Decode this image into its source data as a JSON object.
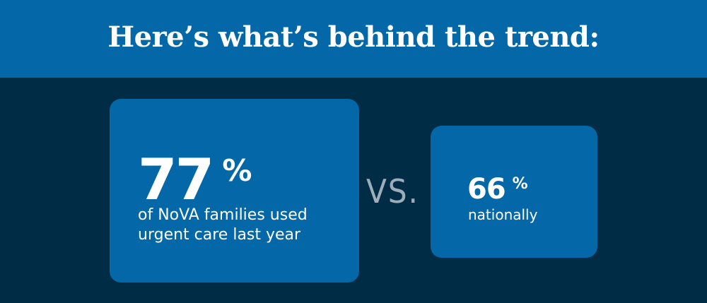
{
  "header": {
    "title": "Here’s what’s behind the trend:"
  },
  "main_stat": {
    "value": "77",
    "unit": "%",
    "caption": "of NoVA families used urgent care last year"
  },
  "divider": {
    "label": "VS."
  },
  "side_stat": {
    "value": "66",
    "unit": "%",
    "caption": "nationally"
  },
  "colors": {
    "background": "#002c46",
    "accent_blue": "#0468a8",
    "text": "#ffffff",
    "muted": "#9eadba"
  }
}
